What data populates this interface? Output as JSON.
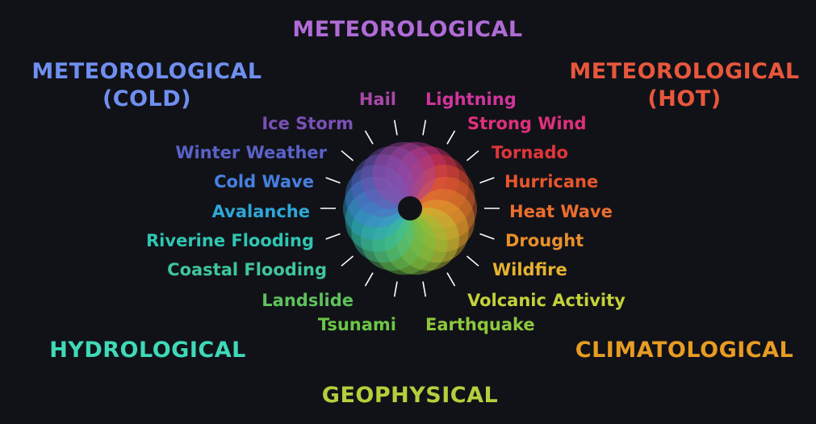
{
  "categories": {
    "meteorological": {
      "label": "METEOROLOGICAL",
      "color": "#b06cd6"
    },
    "meteorological_cold": {
      "line1": "METEOROLOGICAL",
      "line2": "(COLD)",
      "color": "#6f8ff0"
    },
    "meteorological_hot": {
      "line1": "METEOROLOGICAL",
      "line2": "(HOT)",
      "color": "#e8573c"
    },
    "hydrological": {
      "label": "HYDROLOGICAL",
      "color": "#3fd9b8"
    },
    "climatological": {
      "label": "CLIMATOLOGICAL",
      "color": "#e89c22"
    },
    "geophysical": {
      "label": "GEOPHYSICAL",
      "color": "#b5cf3c"
    }
  },
  "hazards": [
    {
      "label": "Lightning",
      "color": "#d0359a"
    },
    {
      "label": "Strong Wind",
      "color": "#e0307c"
    },
    {
      "label": "Tornado",
      "color": "#e0363a"
    },
    {
      "label": "Hurricane",
      "color": "#e8562c"
    },
    {
      "label": "Heat Wave",
      "color": "#ec6e2c"
    },
    {
      "label": "Drought",
      "color": "#e8902a"
    },
    {
      "label": "Wildfire",
      "color": "#e6b22e"
    },
    {
      "label": "Volcanic Activity",
      "color": "#c4d23a"
    },
    {
      "label": "Earthquake",
      "color": "#8ec83c"
    },
    {
      "label": "Tsunami",
      "color": "#6cc644"
    },
    {
      "label": "Landslide",
      "color": "#5dc25a"
    },
    {
      "label": "Coastal Flooding",
      "color": "#40c69a"
    },
    {
      "label": "Riverine Flooding",
      "color": "#2ec6b2"
    },
    {
      "label": "Avalanche",
      "color": "#2ea7d6"
    },
    {
      "label": "Cold Wave",
      "color": "#4680e0"
    },
    {
      "label": "Winter Weather",
      "color": "#5a62c8"
    },
    {
      "label": "Ice Storm",
      "color": "#7a50b6"
    },
    {
      "label": "Hail",
      "color": "#a848a8"
    }
  ]
}
